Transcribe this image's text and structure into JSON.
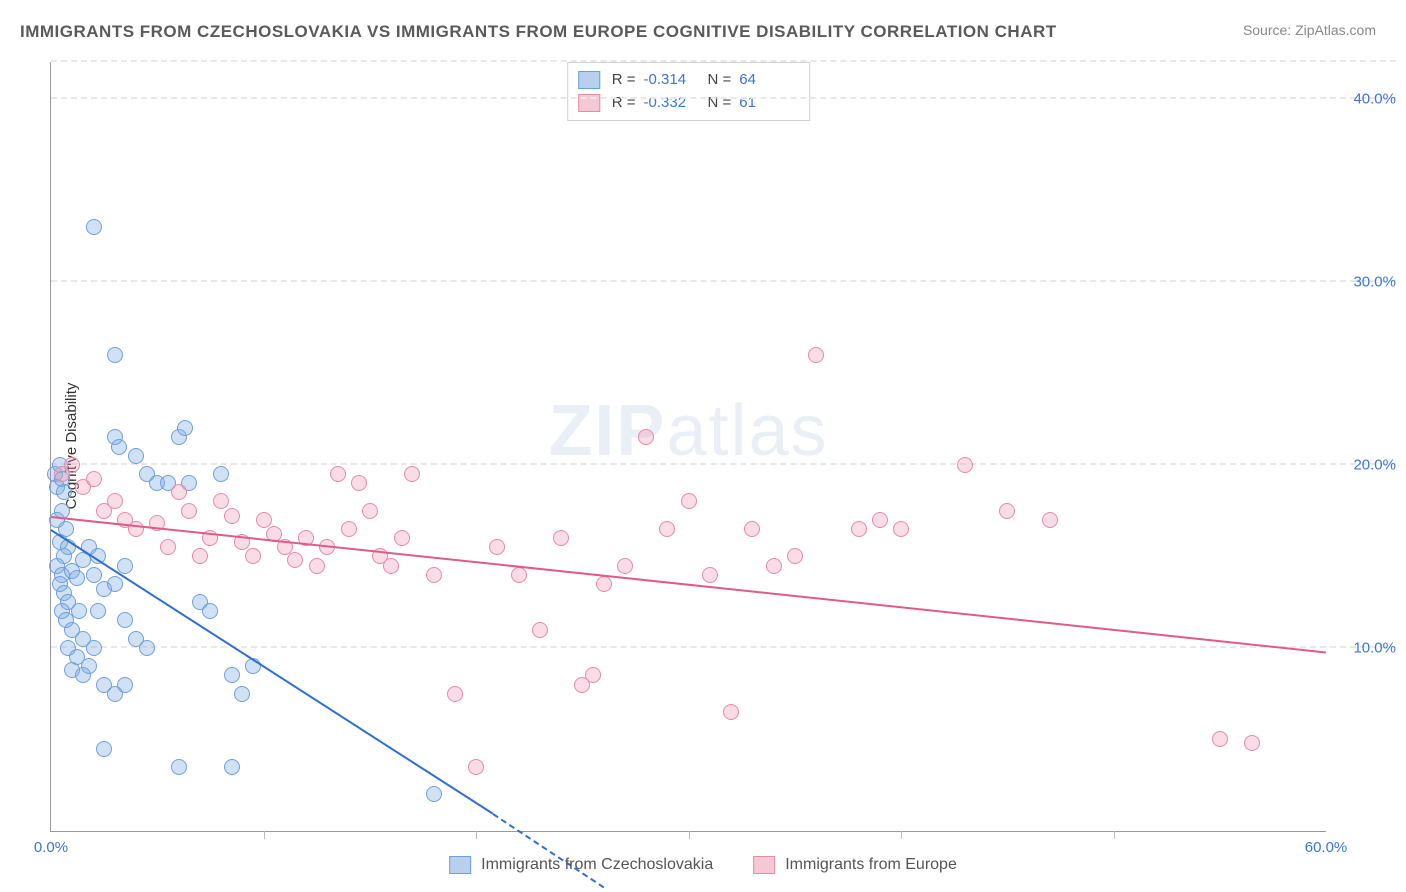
{
  "title": "IMMIGRANTS FROM CZECHOSLOVAKIA VS IMMIGRANTS FROM EUROPE COGNITIVE DISABILITY CORRELATION CHART",
  "source_label": "Source:",
  "source_name": "ZipAtlas.com",
  "ylabel": "Cognitive Disability",
  "watermark": "ZIPatlas",
  "chart": {
    "type": "scatter",
    "xlim": [
      0,
      60
    ],
    "ylim": [
      0,
      42
    ],
    "ytick_labels": [
      "10.0%",
      "20.0%",
      "30.0%",
      "40.0%"
    ],
    "ytick_vals": [
      10,
      20,
      30,
      40
    ],
    "xtick_labels": [
      "0.0%",
      "60.0%"
    ],
    "xtick_vals": [
      0,
      60
    ],
    "xgrid_vals": [
      10,
      20,
      30,
      40,
      50
    ],
    "background_color": "#ffffff",
    "grid_color": "#e8e8e8",
    "marker_radius": 8,
    "axis_color": "#999999",
    "tick_font_color": "#3a75d6",
    "series": [
      {
        "name": "Immigrants from Czechoslovakia",
        "color_fill": "rgba(122,168,226,0.35)",
        "color_stroke": "#6f9fd8",
        "trend_color": "#2f6fd0",
        "R": "-0.314",
        "N": "64",
        "trend": {
          "x0": 0,
          "y0": 16.5,
          "x1": 20.8,
          "y1": 1.0
        },
        "trend_dashed": {
          "x0": 20.8,
          "y0": 1.0,
          "x1": 26,
          "y1": -3.0
        },
        "points": [
          [
            0.2,
            19.5
          ],
          [
            0.3,
            18.8
          ],
          [
            0.4,
            20.0
          ],
          [
            0.5,
            19.2
          ],
          [
            0.6,
            18.5
          ],
          [
            0.5,
            17.5
          ],
          [
            0.3,
            17.0
          ],
          [
            0.7,
            16.5
          ],
          [
            0.4,
            15.8
          ],
          [
            0.6,
            15.0
          ],
          [
            0.8,
            15.5
          ],
          [
            0.3,
            14.5
          ],
          [
            0.5,
            14.0
          ],
          [
            0.4,
            13.5
          ],
          [
            0.6,
            13.0
          ],
          [
            1.0,
            14.2
          ],
          [
            1.2,
            13.8
          ],
          [
            0.8,
            12.5
          ],
          [
            0.5,
            12.0
          ],
          [
            0.7,
            11.5
          ],
          [
            1.5,
            14.8
          ],
          [
            1.8,
            15.5
          ],
          [
            2.0,
            14.0
          ],
          [
            2.2,
            15.0
          ],
          [
            2.5,
            13.2
          ],
          [
            1.3,
            12.0
          ],
          [
            1.0,
            11.0
          ],
          [
            1.5,
            10.5
          ],
          [
            0.8,
            10.0
          ],
          [
            1.2,
            9.5
          ],
          [
            1.0,
            8.8
          ],
          [
            1.5,
            8.5
          ],
          [
            1.8,
            9.0
          ],
          [
            2.0,
            10.0
          ],
          [
            2.2,
            12.0
          ],
          [
            3.0,
            13.5
          ],
          [
            3.5,
            14.5
          ],
          [
            3.2,
            21.0
          ],
          [
            3.0,
            21.5
          ],
          [
            4.0,
            20.5
          ],
          [
            4.5,
            19.5
          ],
          [
            5.0,
            19.0
          ],
          [
            5.5,
            19.0
          ],
          [
            6.0,
            21.5
          ],
          [
            6.3,
            22.0
          ],
          [
            6.5,
            19.0
          ],
          [
            7.0,
            12.5
          ],
          [
            7.5,
            12.0
          ],
          [
            8.0,
            19.5
          ],
          [
            2.5,
            8.0
          ],
          [
            3.0,
            7.5
          ],
          [
            3.5,
            8.0
          ],
          [
            4.0,
            10.5
          ],
          [
            4.5,
            10.0
          ],
          [
            3.5,
            11.5
          ],
          [
            8.5,
            8.5
          ],
          [
            9.0,
            7.5
          ],
          [
            9.5,
            9.0
          ],
          [
            2.0,
            33.0
          ],
          [
            3.0,
            26.0
          ],
          [
            2.5,
            4.5
          ],
          [
            6.0,
            3.5
          ],
          [
            8.5,
            3.5
          ],
          [
            18.0,
            2.0
          ]
        ]
      },
      {
        "name": "Immigrants from Europe",
        "color_fill": "rgba(238,156,180,0.35)",
        "color_stroke": "#e68aa8",
        "trend_color": "#e05a8a",
        "R": "-0.332",
        "N": "61",
        "trend": {
          "x0": 0,
          "y0": 17.2,
          "x1": 60,
          "y1": 9.8
        },
        "points": [
          [
            0.5,
            19.5
          ],
          [
            1.0,
            20.0
          ],
          [
            1.5,
            18.8
          ],
          [
            2.0,
            19.2
          ],
          [
            2.5,
            17.5
          ],
          [
            3.0,
            18.0
          ],
          [
            3.5,
            17.0
          ],
          [
            4.0,
            16.5
          ],
          [
            5.0,
            16.8
          ],
          [
            5.5,
            15.5
          ],
          [
            6.0,
            18.5
          ],
          [
            6.5,
            17.5
          ],
          [
            7.0,
            15.0
          ],
          [
            7.5,
            16.0
          ],
          [
            8.0,
            18.0
          ],
          [
            8.5,
            17.2
          ],
          [
            9.0,
            15.8
          ],
          [
            9.5,
            15.0
          ],
          [
            10.0,
            17.0
          ],
          [
            10.5,
            16.2
          ],
          [
            11.0,
            15.5
          ],
          [
            11.5,
            14.8
          ],
          [
            12.0,
            16.0
          ],
          [
            12.5,
            14.5
          ],
          [
            13.0,
            15.5
          ],
          [
            13.5,
            19.5
          ],
          [
            14.0,
            16.5
          ],
          [
            14.5,
            19.0
          ],
          [
            15.0,
            17.5
          ],
          [
            15.5,
            15.0
          ],
          [
            16.0,
            14.5
          ],
          [
            16.5,
            16.0
          ],
          [
            17.0,
            19.5
          ],
          [
            18.0,
            14.0
          ],
          [
            19.0,
            7.5
          ],
          [
            20.0,
            3.5
          ],
          [
            21.0,
            15.5
          ],
          [
            22.0,
            14.0
          ],
          [
            23.0,
            11.0
          ],
          [
            24.0,
            16.0
          ],
          [
            25.0,
            8.0
          ],
          [
            25.5,
            8.5
          ],
          [
            26.0,
            13.5
          ],
          [
            27.0,
            14.5
          ],
          [
            28.0,
            21.5
          ],
          [
            29.0,
            16.5
          ],
          [
            30.0,
            18.0
          ],
          [
            31.0,
            14.0
          ],
          [
            32.0,
            6.5
          ],
          [
            33.0,
            16.5
          ],
          [
            34.0,
            14.5
          ],
          [
            35.0,
            15.0
          ],
          [
            36.0,
            26.0
          ],
          [
            38.0,
            16.5
          ],
          [
            39.0,
            17.0
          ],
          [
            40.0,
            16.5
          ],
          [
            43.0,
            20.0
          ],
          [
            45.0,
            17.5
          ],
          [
            47.0,
            17.0
          ],
          [
            55.0,
            5.0
          ],
          [
            56.5,
            4.8
          ]
        ]
      }
    ]
  },
  "legend_swatch_blue_fill": "#b7d0ed",
  "legend_swatch_blue_stroke": "#6f9fd8",
  "legend_swatch_pink_fill": "#f5c8d6",
  "legend_swatch_pink_stroke": "#e68aa8"
}
